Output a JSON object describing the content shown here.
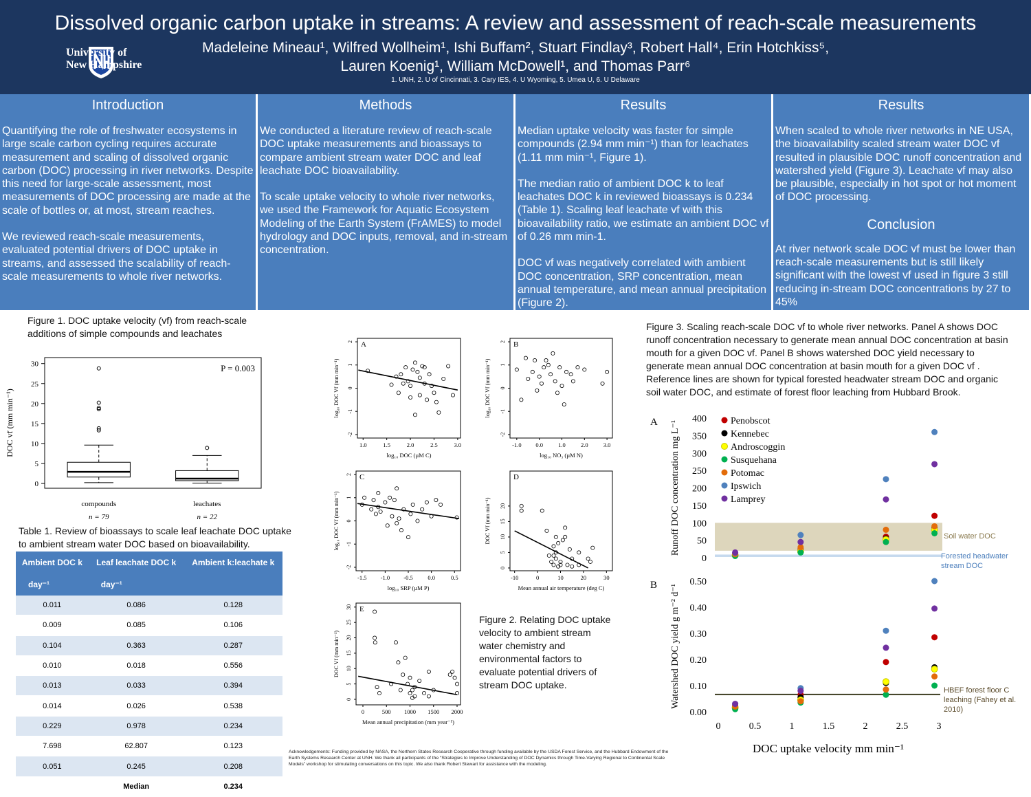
{
  "header": {
    "title": "Dissolved organic carbon uptake in streams: A review and assessment of reach-scale measurements",
    "authors": [
      "Madeleine  Mineau¹, Wilfred  Wollheim¹, Ishi Buffam², Stuart Findlay³, Robert Hall⁴, Erin Hotchkiss⁵,",
      "Lauren Koenig¹, William McDowell¹, and Thomas Parr⁶"
    ],
    "affiliations": "1. UNH, 2. U of Cincinnati, 3. Cary IES, 4. U Wyoming, 5. Umea U, 6. U Delaware",
    "logo": [
      "University of",
      "New Hampshire"
    ]
  },
  "columns": [
    {
      "heading": "Introduction",
      "paragraphs": [
        "Quantifying the role of freshwater ecosystems in large scale carbon cycling requires accurate measurement and scaling of dissolved organic carbon (DOC) processing in river networks. Despite this need for large-scale assessment, most measurements of DOC processing are made at the scale of bottles or, at most, stream reaches.",
        "We reviewed reach-scale measurements, evaluated potential drivers of DOC uptake in streams, and assessed the scalability of reach-scale measurements to whole river networks."
      ]
    },
    {
      "heading": "Methods",
      "paragraphs": [
        "We conducted a literature review of reach-scale DOC uptake measurements and bioassays to compare ambient stream water DOC and leaf leachate DOC bioavailability.",
        "To scale uptake velocity to whole river networks, we used the Framework for Aquatic Ecosystem Modeling of the Earth System (FrAMES) to model hydrology and DOC inputs, removal, and in-stream concentration."
      ]
    },
    {
      "heading": "Results",
      "paragraphs": [
        "Median uptake velocity was faster for simple compounds (2.94 mm min⁻¹) than for leachates (1.11 mm min⁻¹, Figure 1).",
        "The median ratio of ambient DOC k to leaf leachates DOC k in reviewed bioassays is 0.234 (Table 1).  Scaling leaf leachate vf with this bioavailability ratio, we estimate an ambient DOC vf of 0.26 mm min-1.",
        "DOC vf was negatively correlated with ambient DOC concentration, SRP concentration, mean annual temperature, and mean annual precipitation (Figure 2)."
      ]
    },
    {
      "heading": "Results",
      "paragraphs": [
        "When scaled to whole river networks in NE USA, the bioavailability scaled stream water DOC vf resulted in plausible DOC runoff concentration and watershed yield (Figure 3). Leachate vf may also be plausible, especially in hot spot or hot moment of DOC processing."
      ],
      "subheading": "Conclusion",
      "sub_paragraphs": [
        "At river network scale DOC vf must be lower than reach-scale measurements but is still likely significant with the lowest vf  used in figure 3 still reducing in-stream DOC concentrations by 27 to 45%"
      ]
    }
  ],
  "figure1": {
    "caption": "Figure 1. DOC uptake velocity (vf) from reach-scale additions of simple compounds and leachates",
    "type": "box",
    "ylabel": "DOC vf (mm min⁻¹)",
    "ylim": [
      -1.2,
      31.5
    ],
    "yticks": [
      0,
      5,
      10,
      15,
      20,
      25,
      30
    ],
    "annotation": "P = 0.003",
    "categories": [
      "compounds",
      "leachates"
    ],
    "n_labels": [
      "n = 79",
      "n = 22"
    ],
    "boxes": [
      {
        "whisker_low": 0.2,
        "q1": 1.6,
        "median": 2.9,
        "q3": 5.3,
        "whisker_high": 9.6,
        "outliers": [
          13.3,
          13.8,
          18.6,
          18.9,
          20.2,
          28.8
        ]
      },
      {
        "whisker_low": 0.1,
        "q1": 0.7,
        "median": 1.2,
        "q3": 3.2,
        "whisker_high": 7.0,
        "outliers": [
          8.9
        ]
      }
    ]
  },
  "table1": {
    "caption": "Table 1. Review of bioassays to scale leaf leachate DOC uptake to ambient stream water DOC based on bioavailability.",
    "headers": [
      "Ambient DOC k",
      "Leaf leachate DOC k",
      "Ambient k:leachate k"
    ],
    "units": [
      "day⁻¹",
      "day⁻¹",
      null
    ],
    "rows": [
      [
        "0.011",
        "0.086",
        "0.128"
      ],
      [
        "0.009",
        "0.085",
        "0.106"
      ],
      [
        "0.104",
        "0.363",
        "0.287"
      ],
      [
        "0.010",
        "0.018",
        "0.556"
      ],
      [
        "0.013",
        "0.033",
        "0.394"
      ],
      [
        "0.014",
        "0.026",
        "0.538"
      ],
      [
        "0.229",
        "0.978",
        "0.234"
      ],
      [
        "7.698",
        "62.807",
        "0.123"
      ],
      [
        "0.051",
        "0.245",
        "0.208"
      ]
    ],
    "footer": [
      null,
      "Median",
      "0.234"
    ]
  },
  "figure2": {
    "caption": "Figure 2. Relating DOC uptake velocity to ambient stream water chemistry and environmental factors to evaluate potential drivers of stream DOC uptake.",
    "panels": [
      {
        "label": "A",
        "type": "scatter",
        "xlabel": "log₁₀ DOC (µM C)",
        "ylabel": "log₁₀ DOC Vf (mm min⁻¹)",
        "xlim": [
          0.88,
          3.06
        ],
        "xticks": [
          {
            "value": 1,
            "label": "1.0"
          },
          1.5,
          {
            "value": 2,
            "label": "2.0"
          },
          2.5,
          {
            "value": 3,
            "label": "3.0"
          }
        ],
        "ylim": [
          -2.15,
          2.15
        ],
        "yticks": [
          -2,
          -1,
          0,
          1,
          2
        ],
        "x": [
          1.1,
          1.6,
          1.7,
          1.8,
          1.85,
          1.9,
          1.95,
          2.0,
          2.05,
          2.1,
          2.1,
          2.15,
          2.2,
          2.2,
          2.25,
          2.3,
          2.35,
          2.4,
          2.45,
          2.5,
          2.55,
          2.6,
          2.7,
          2.8,
          2.9,
          1.75,
          2.0,
          2.3
        ],
        "y": [
          0.75,
          0.15,
          0.5,
          0.6,
          0.2,
          0.9,
          0.3,
          0.1,
          0.8,
          1.1,
          -1.15,
          0.7,
          0.45,
          -0.3,
          0.95,
          0.2,
          -0.5,
          0.6,
          0.1,
          -0.2,
          -0.6,
          -1.05,
          0.4,
          0.95,
          -0.3,
          -0.2,
          -0.4,
          0.9
        ],
        "fit": {
          "x": [
            0.9,
            3.0
          ],
          "y": [
            0.78,
            -0.08
          ]
        }
      },
      {
        "label": "B",
        "type": "scatter",
        "xlabel": "log₁₀ NO₃ (µM N)",
        "ylabel": "log₁₀ DOC Vf (mm min⁻¹)",
        "xlim": [
          -1.3,
          3.24
        ],
        "xticks": [
          {
            "value": -1,
            "label": "-1.0"
          },
          {
            "value": 0,
            "label": "0.0"
          },
          {
            "value": 1,
            "label": "1.0"
          },
          {
            "value": 2,
            "label": "2.0"
          },
          {
            "value": 3,
            "label": "3.0"
          }
        ],
        "ylim": [
          -2.15,
          2.15
        ],
        "yticks": [
          -2,
          -1,
          0,
          1,
          2
        ],
        "x": [
          -1.0,
          -0.8,
          -0.6,
          -0.5,
          -0.3,
          -0.2,
          0.0,
          0.1,
          0.2,
          0.3,
          0.5,
          0.6,
          0.7,
          0.8,
          0.9,
          1.0,
          1.1,
          1.2,
          1.4,
          1.5,
          1.7,
          2.0,
          2.8,
          3.0,
          0.4,
          -0.1
        ],
        "y": [
          0.8,
          -0.5,
          1.3,
          0.4,
          0.7,
          1.2,
          0.5,
          0.2,
          0.9,
          1.2,
          0.6,
          1.5,
          0.3,
          -0.2,
          0.9,
          0.1,
          -0.7,
          0.7,
          0.6,
          0.3,
          0.9,
          0.8,
          0.2,
          0.7,
          1.0,
          -0.1
        ]
      },
      {
        "label": "C",
        "type": "scatter",
        "xlabel": "log₁₀ SRP (µM P)",
        "ylabel": "log₁₀ DOC Vf (mm min⁻¹)",
        "xlim": [
          -1.63,
          0.63
        ],
        "xticks": [
          -1.5,
          {
            "value": -1,
            "label": "-1.0"
          },
          -0.5,
          {
            "value": 0,
            "label": "0.0"
          },
          0.5
        ],
        "ylim": [
          -2.15,
          2.15
        ],
        "yticks": [
          -2,
          -1,
          0,
          1,
          2
        ],
        "x": [
          -1.5,
          -1.45,
          -1.3,
          -1.25,
          -1.2,
          -1.15,
          -1.15,
          -1.1,
          -1.0,
          -0.95,
          -0.9,
          -0.85,
          -0.8,
          -0.75,
          -0.7,
          -0.65,
          -0.6,
          -0.5,
          -0.45,
          -0.4,
          -0.3,
          -0.2,
          -0.1,
          0.0,
          0.1,
          0.2,
          -0.75,
          0.55
        ],
        "y": [
          0.7,
          1.0,
          0.5,
          0.9,
          0.3,
          0.6,
          1.2,
          0.4,
          0.8,
          -0.2,
          1.0,
          0.2,
          0.9,
          1.4,
          0.1,
          -0.4,
          0.5,
          -0.7,
          0.3,
          0.7,
          0.0,
          0.5,
          0.8,
          0.2,
          0.9,
          0.7,
          -0.1,
          0.15
        ],
        "fit": {
          "x": [
            -1.6,
            0.6
          ],
          "y": [
            0.75,
            0.1
          ]
        }
      },
      {
        "label": "D",
        "type": "scatter",
        "xlabel": "Mean annual air temperature (deg C)",
        "ylabel": "DOC Vf (mm min⁻¹)",
        "xlim": [
          -12,
          32.6
        ],
        "xticks": [
          -10,
          0,
          10,
          20,
          30
        ],
        "ylim": [
          -0.9,
          31.3
        ],
        "yticks": [
          0,
          5,
          10,
          15,
          20
        ],
        "x": [
          -7,
          -7,
          2,
          4,
          5,
          6,
          7,
          7,
          8,
          8,
          8,
          9,
          10,
          10,
          12,
          12,
          14,
          15,
          15,
          18,
          18,
          22,
          23,
          24,
          7,
          9,
          11,
          13
        ],
        "y": [
          20,
          18.5,
          18.5,
          12,
          4,
          2,
          7,
          1,
          10,
          5,
          3,
          8,
          2,
          1,
          10,
          13,
          6,
          0.5,
          3,
          5,
          1,
          3,
          2,
          6.5,
          4,
          0.5,
          9,
          1
        ],
        "fit": {
          "x": [
            -10,
            22
          ],
          "y": [
            12,
            0
          ]
        }
      },
      {
        "label": "E",
        "type": "scatter",
        "xlabel": "Mean annual precipitation (mm year⁻¹)",
        "ylabel": "DOC Vf (mm min⁻¹)",
        "xlim": [
          -146,
          2073
        ],
        "xticks": [
          0,
          500,
          1000,
          1500,
          2000
        ],
        "ylim": [
          -1.8,
          31.3
        ],
        "yticks": [
          0,
          5,
          10,
          15,
          20,
          25,
          30
        ],
        "x": [
          250,
          250,
          260,
          300,
          350,
          700,
          750,
          800,
          850,
          900,
          950,
          1000,
          1000,
          1050,
          1100,
          1100,
          1200,
          1300,
          1400,
          1400,
          1500,
          1900,
          1950,
          2000,
          2000,
          600,
          1050,
          1850
        ],
        "y": [
          28.5,
          20,
          18.5,
          4,
          2,
          18.5,
          12,
          3,
          8,
          13.5,
          5,
          2,
          7,
          0.5,
          1,
          4,
          6,
          2,
          9,
          1,
          3,
          9,
          7,
          2,
          5,
          5,
          3,
          8
        ],
        "fit": {
          "x": [
            -100,
            2000
          ],
          "y": [
            7.5,
            1.5
          ]
        }
      }
    ]
  },
  "figure3": {
    "caption": "Figure 3. Scaling reach-scale DOC vf to whole river networks.  Panel A shows DOC runoff concentration necessary to generate mean annual DOC concentration at basin mouth for a given DOC vf.  Panel B shows watershed DOC yield necessary to generate mean annual DOC concentration at basin mouth for a given DOC vf . Reference lines are shown for typical forested headwater stream DOC and organic soil water DOC, and estimate of forest floor leaching from Hubbard Brook.",
    "type": "scatter",
    "x": [
      0.23,
      1.12,
      2.28,
      2.94
    ],
    "xlim": [
      0,
      3
    ],
    "xticks": [
      0,
      0.5,
      1,
      1.5,
      2,
      2.5,
      3
    ],
    "xlabel": "DOC uptake velocity mm min⁻¹",
    "panel_a": {
      "label": "A",
      "ylabel": "Runoff DOC concentration mg L⁻¹",
      "ylim": [
        0,
        400
      ],
      "yticks": [
        0,
        50,
        100,
        150,
        200,
        250,
        300,
        350,
        400
      ],
      "references": [
        {
          "label": "Soil water DOC",
          "range": [
            20,
            100
          ],
          "color": "#ddd6bc"
        },
        {
          "label": "Forested headwater stream DOC",
          "range": [
            2,
            9
          ],
          "color": "#c6d9ee"
        }
      ]
    },
    "panel_b": {
      "label": "B",
      "ylabel": "Watershed DOC yield g m⁻² d⁻¹",
      "ylim": [
        0,
        0.5
      ],
      "yticks": [
        {
          "value": 0,
          "label": "0.00"
        },
        {
          "value": 0.1,
          "label": "0.10"
        },
        {
          "value": 0.2,
          "label": "0.20"
        },
        {
          "value": 0.3,
          "label": "0.30"
        },
        {
          "value": 0.4,
          "label": "0.40"
        },
        {
          "value": 0.5,
          "label": "0.50"
        }
      ],
      "references": [
        {
          "label": "HBEF forest floor C leaching (Fahey et al. 2010)",
          "value": 0.066,
          "color": "#3b3b20"
        }
      ]
    },
    "series": [
      {
        "name": "Penobscot",
        "color": "#c00000",
        "runoff": [
          12,
          25,
          60,
          120
        ],
        "yield": [
          0.025,
          0.065,
          0.19,
          0.285
        ]
      },
      {
        "name": "Kennebec",
        "color": "#000000",
        "runoff": [
          8,
          20,
          55,
          85
        ],
        "yield": [
          0.02,
          0.055,
          0.11,
          0.17
        ]
      },
      {
        "name": "Androscoggin",
        "color": "#ffff00",
        "runoff": [
          7,
          18,
          52,
          80
        ],
        "yield": [
          0.015,
          0.045,
          0.115,
          0.163
        ]
      },
      {
        "name": "Susquehana",
        "color": "#00b050",
        "runoff": [
          5,
          15,
          45,
          70
        ],
        "yield": [
          0.01,
          0.035,
          0.065,
          0.1
        ]
      },
      {
        "name": "Potomac",
        "color": "#e36c0a",
        "runoff": [
          10,
          30,
          80,
          90
        ],
        "yield": [
          0.02,
          0.04,
          0.085,
          0.135
        ]
      },
      {
        "name": "Ipswich",
        "color": "#4f81bd",
        "runoff": [
          14,
          65,
          225,
          360
        ],
        "yield": [
          0.03,
          0.09,
          0.31,
          0.5
        ]
      },
      {
        "name": "Lamprey",
        "color": "#7030a0",
        "runoff": [
          15,
          45,
          167,
          268
        ],
        "yield": [
          0.03,
          0.08,
          0.245,
          0.395
        ]
      }
    ]
  },
  "acknowledgements": "Acknowledgements: Funding provided by NASA, the Northern States Research Cooperative through funding available by the USDA Forest Service, and the Hubbard Endowment of the Earth Systems Research Center at UNH.  We thank all participants of the “Strategies to Improve Understanding of DOC Dynamics through Time-Varying Regional to Continental Scale Models” workshop for stimulating conversations on this topic.  We also thank Robert Stewart for assistance with the modeling."
}
